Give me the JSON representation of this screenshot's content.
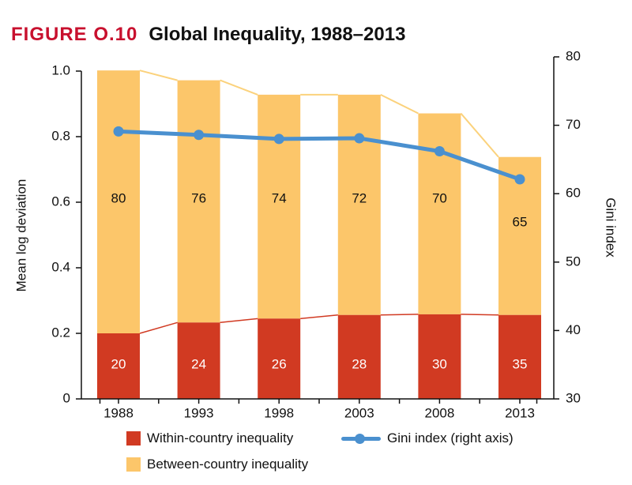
{
  "figure": {
    "label": "FIGURE O.10",
    "title": "Global Inequality, 1988–2013"
  },
  "colors": {
    "within": "#d13a22",
    "between": "#fcc66a",
    "gini": "#4a90cf",
    "connector_within": "#d13a22",
    "connector_between": "#fbd27c",
    "axis": "#111111",
    "label_dark": "#111111",
    "label_light": "#ffffff"
  },
  "chart_data": {
    "type": "bar",
    "stacked": true,
    "categories": [
      "1988",
      "1993",
      "1998",
      "2003",
      "2008",
      "2013"
    ],
    "series": [
      {
        "name": "Within-country inequality",
        "values": [
          0.2,
          0.233,
          0.245,
          0.256,
          0.258,
          0.256
        ],
        "segment_labels": [
          "20",
          "24",
          "26",
          "28",
          "30",
          "35"
        ]
      },
      {
        "name": "Between-country inequality",
        "values": [
          0.802,
          0.739,
          0.683,
          0.672,
          0.613,
          0.482
        ],
        "segment_labels": [
          "80",
          "76",
          "74",
          "72",
          "70",
          "65"
        ]
      }
    ],
    "line": {
      "name": "Gini index (right axis)",
      "axis": "right",
      "values": [
        69.1,
        68.6,
        68.0,
        68.1,
        66.2,
        62.1
      ]
    },
    "ylabel": "Mean log deviation",
    "ylim": [
      0,
      1.0
    ],
    "yticks": [
      "0",
      "0.2",
      "0.4",
      "0.6",
      "0.8",
      "1.0"
    ],
    "y2label": "Gini index",
    "y2lim": [
      30,
      80
    ],
    "y2ticks": [
      "30",
      "40",
      "50",
      "60",
      "70",
      "80"
    ],
    "grid": false,
    "legend_position": "bottom"
  },
  "legend": {
    "within": "Within-country inequality",
    "between": "Between-country inequality",
    "gini": "Gini index (right axis)"
  }
}
